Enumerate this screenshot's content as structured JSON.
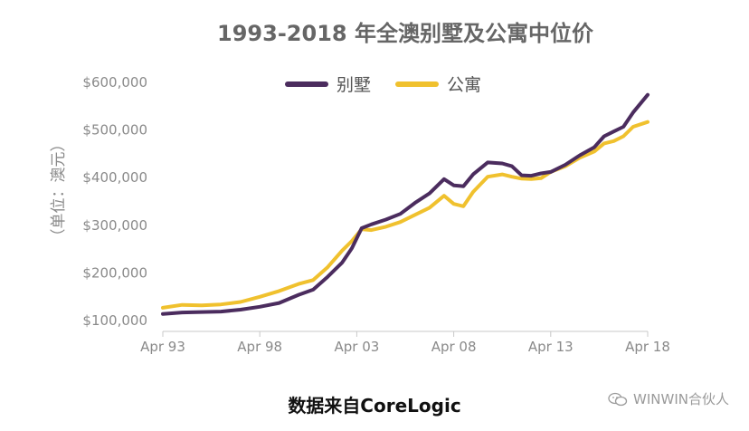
{
  "colors": {
    "villa": "#4b2c5e",
    "apartment": "#f0c12e",
    "title": "#666666",
    "axis_text": "#8a8a8a",
    "axis_line": "#c8c8c8"
  },
  "caption": "数据来自CoreLogic",
  "watermark": {
    "text": "WINWIN合伙人",
    "icon": "wechat-icon"
  },
  "chart_data": {
    "type": "line",
    "title": "1993-2018 年全澳别墅及公寓中位价",
    "xlabel": "",
    "ylabel": "（单位：澳元）",
    "x_ticks": [
      "Apr 93",
      "Apr 98",
      "Apr 03",
      "Apr 08",
      "Apr 13",
      "Apr 18"
    ],
    "x_range": [
      1993.25,
      2018.25
    ],
    "ylim": [
      100000,
      600000
    ],
    "y_ticks": [
      100000,
      200000,
      300000,
      400000,
      500000,
      600000
    ],
    "y_tick_labels": [
      "$100,000",
      "$200,000",
      "$300,000",
      "$400,000",
      "$500,000",
      "$600,000"
    ],
    "grid": false,
    "legend_position": "top-center",
    "x": [
      1993.25,
      1994.25,
      1995.25,
      1996.25,
      1997.25,
      1998.25,
      1999.25,
      2000.25,
      2001.0,
      2001.75,
      2002.5,
      2003.0,
      2003.5,
      2004.0,
      2004.75,
      2005.5,
      2006.25,
      2007.0,
      2007.75,
      2008.25,
      2008.75,
      2009.25,
      2010.0,
      2010.75,
      2011.25,
      2011.75,
      2012.25,
      2012.75,
      2013.25,
      2014.0,
      2014.75,
      2015.5,
      2016.0,
      2016.5,
      2017.0,
      2017.5,
      2018.25
    ],
    "series": [
      {
        "name": "别墅",
        "key": "villa",
        "values": [
          112000,
          115000,
          116000,
          117000,
          121000,
          127000,
          135000,
          152000,
          163000,
          190000,
          220000,
          250000,
          292000,
          300000,
          310000,
          322000,
          345000,
          365000,
          395000,
          382000,
          380000,
          405000,
          430000,
          428000,
          422000,
          403000,
          402000,
          407000,
          410000,
          425000,
          445000,
          462000,
          485000,
          495000,
          505000,
          535000,
          572000
        ]
      },
      {
        "name": "公寓",
        "key": "apartment",
        "values": [
          125000,
          131000,
          130000,
          132000,
          137000,
          148000,
          160000,
          175000,
          183000,
          210000,
          245000,
          265000,
          290000,
          288000,
          295000,
          305000,
          320000,
          335000,
          360000,
          343000,
          338000,
          368000,
          400000,
          405000,
          400000,
          396000,
          395000,
          397000,
          410000,
          422000,
          440000,
          453000,
          470000,
          475000,
          485000,
          505000,
          515000
        ]
      }
    ]
  }
}
